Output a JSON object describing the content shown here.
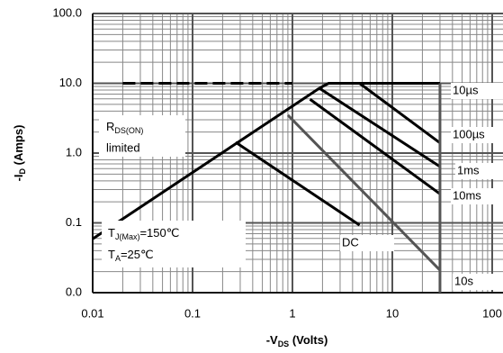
{
  "chart_data": {
    "type": "line",
    "xlabel": {
      "text": "-V",
      "sub": "DS",
      "suffix": " (Volts)"
    },
    "ylabel": {
      "text": "-I",
      "sub": "D",
      "suffix": " (Amps)"
    },
    "xlog": true,
    "ylog": true,
    "grid": true,
    "minor_grid": true,
    "xlim": [
      0.01,
      100
    ],
    "ylim": [
      0.01,
      100
    ],
    "xticks": [
      0.01,
      0.1,
      1,
      10,
      100
    ],
    "yticks": [
      {
        "value": 100,
        "label": "100.0"
      },
      {
        "value": 10,
        "label": "10.0"
      },
      {
        "value": 1,
        "label": "1.0"
      },
      {
        "value": 0.1,
        "label": "0.1"
      },
      {
        "value": 0.01,
        "label": "0.0"
      }
    ],
    "annotations": [
      {
        "text": "R",
        "sub": "DS(ON)",
        "line2": "limited"
      },
      {
        "text": "T",
        "sub": "J(Max)",
        "suffix": "=150℃",
        "line2": "T",
        "sub2": "A",
        "suffix2": "=25℃"
      }
    ],
    "series": [
      {
        "color": "#000000",
        "x": [
          0.01,
          1.86
        ],
        "values": [
          0.059,
          8.5
        ]
      },
      {
        "color": "#000000",
        "dash": true,
        "x": [
          0.02,
          1
        ],
        "values": [
          10,
          10
        ]
      },
      {
        "name": "10µs",
        "color": "#000000",
        "x": [
          1.86,
          2.3,
          30
        ],
        "values": [
          8.5,
          10,
          10
        ]
      },
      {
        "name": "100µs",
        "color": "#000000",
        "x": [
          4.7,
          30
        ],
        "values": [
          10,
          1.4
        ]
      },
      {
        "name": "1ms",
        "color": "#000000",
        "x": [
          1.86,
          30
        ],
        "values": [
          8.5,
          0.64
        ]
      },
      {
        "name": "10ms",
        "color": "#000000",
        "x": [
          1.5,
          30
        ],
        "values": [
          5.9,
          0.26
        ]
      },
      {
        "name": "DC",
        "color": "#000000",
        "x": [
          0.27,
          4.7
        ],
        "values": [
          1.43,
          0.093
        ]
      },
      {
        "name": "10s",
        "color": "#555555",
        "x": [
          0.9,
          30
        ],
        "values": [
          3.5,
          0.021
        ]
      },
      {
        "color": "#555555",
        "x": [
          30,
          30
        ],
        "values": [
          10,
          0.01
        ]
      }
    ]
  }
}
